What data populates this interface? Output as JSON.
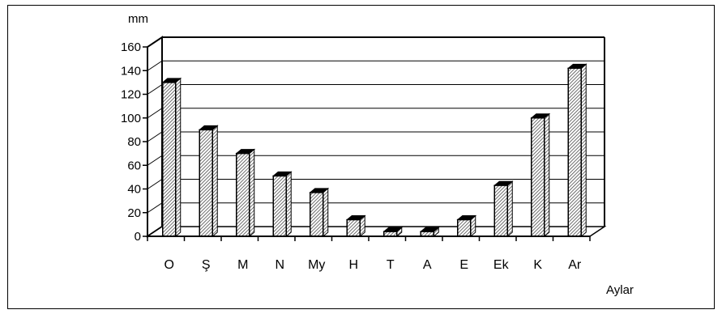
{
  "chart_data": {
    "type": "bar",
    "categories": [
      "O",
      "Ş",
      "M",
      "N",
      "My",
      "H",
      "T",
      "A",
      "E",
      "Ek",
      "K",
      "Ar"
    ],
    "values": [
      130,
      90,
      70,
      51,
      37,
      14,
      4,
      4,
      14,
      43,
      100,
      142
    ],
    "ylabel": "mm",
    "xlabel": "Aylar",
    "ylim": [
      0,
      160
    ],
    "yticks": [
      0,
      20,
      40,
      60,
      80,
      100,
      120,
      140,
      160
    ],
    "grid": true,
    "style": "3d-column",
    "bar_color": "#b4b4b4"
  }
}
